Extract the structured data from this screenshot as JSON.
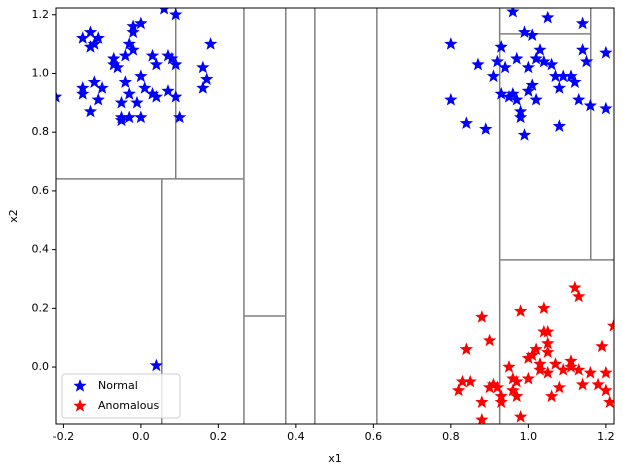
{
  "chart_data": {
    "type": "scatter",
    "x_label": "x1",
    "y_label": "x2",
    "xlim": [
      -0.219,
      1.221
    ],
    "ylim": [
      -0.194,
      1.223
    ],
    "xticks": [
      -0.2,
      {
        "value": 0,
        "label": "0.0"
      },
      0.2,
      0.4,
      0.6,
      0.8,
      {
        "value": 1,
        "label": "1.0"
      },
      1.2
    ],
    "yticks": [
      {
        "value": 0,
        "label": "0.0"
      },
      0.2,
      0.4,
      0.6,
      0.8,
      {
        "value": 1,
        "label": "1.0"
      },
      1.2
    ],
    "legend": "lower left",
    "partition_color": "#808080",
    "partitions": [
      {
        "x": [
          -0.219,
          0.266
        ],
        "y": [
          0.641,
          0.641
        ]
      },
      {
        "x": [
          0.09,
          0.09
        ],
        "y": [
          1.223,
          0.641
        ]
      },
      {
        "x": [
          0.054,
          0.054
        ],
        "y": [
          0.641,
          -0.194
        ]
      },
      {
        "x": [
          0.266,
          0.266
        ],
        "y": [
          1.223,
          -0.194
        ]
      },
      {
        "x": [
          0.374,
          0.374
        ],
        "y": [
          1.223,
          -0.194
        ]
      },
      {
        "x": [
          0.266,
          0.374
        ],
        "y": [
          0.174,
          0.174
        ]
      },
      {
        "x": [
          0.449,
          0.449
        ],
        "y": [
          1.223,
          -0.194
        ]
      },
      {
        "x": [
          0.609,
          0.609
        ],
        "y": [
          1.223,
          -0.194
        ]
      },
      {
        "x": [
          0.926,
          0.926
        ],
        "y": [
          1.223,
          -0.194
        ]
      },
      {
        "x": [
          0.926,
          1.221
        ],
        "y": [
          0.365,
          0.365
        ]
      },
      {
        "x": [
          1.161,
          1.161
        ],
        "y": [
          1.223,
          0.365
        ]
      },
      {
        "x": [
          0.926,
          1.161
        ],
        "y": [
          1.135,
          1.135
        ]
      }
    ],
    "series": [
      {
        "name": "Normal",
        "color": "#0000ff",
        "x": [
          -0.22,
          -0.15,
          -0.13,
          -0.12,
          -0.11,
          -0.13,
          -0.02,
          -0.02,
          0.0,
          0.06,
          0.09,
          0.18,
          -0.15,
          -0.15,
          -0.12,
          -0.1,
          -0.11,
          -0.13,
          -0.07,
          -0.07,
          -0.06,
          -0.04,
          -0.03,
          -0.02,
          -0.04,
          -0.03,
          0.0,
          0.01,
          0.03,
          0.04,
          0.07,
          0.08,
          0.07,
          0.09,
          0.03,
          0.04,
          -0.01,
          -0.05,
          -0.05,
          -0.05,
          -0.03,
          0.0,
          0.1,
          0.16,
          0.17,
          0.16,
          0.09,
          0.8,
          0.8,
          0.84,
          0.87,
          0.89,
          0.91,
          0.92,
          0.93,
          0.93,
          0.94,
          0.95,
          0.96,
          0.97,
          0.97,
          0.98,
          0.98,
          0.99,
          0.99,
          1.0,
          1.0,
          1.01,
          1.01,
          1.02,
          1.02,
          1.03,
          1.04,
          1.05,
          1.06,
          1.07,
          1.08,
          1.08,
          1.09,
          1.11,
          1.12,
          1.13,
          1.14,
          1.14,
          1.15,
          1.16,
          1.2,
          1.2,
          0.96,
          0.04
        ],
        "y": [
          0.92,
          1.12,
          1.14,
          1.1,
          1.12,
          1.09,
          1.16,
          1.14,
          1.17,
          1.22,
          1.2,
          1.1,
          0.95,
          0.93,
          0.97,
          0.95,
          0.91,
          0.87,
          1.03,
          1.05,
          1.02,
          1.06,
          1.1,
          1.08,
          0.97,
          0.93,
          0.99,
          0.95,
          1.06,
          1.03,
          1.06,
          1.05,
          0.94,
          0.92,
          0.93,
          0.92,
          0.9,
          0.9,
          0.85,
          0.84,
          0.85,
          0.85,
          0.85,
          1.02,
          0.98,
          0.95,
          1.03,
          1.1,
          0.91,
          0.83,
          1.03,
          0.81,
          0.99,
          1.04,
          0.93,
          1.09,
          1.02,
          0.92,
          1.21,
          0.91,
          1.05,
          0.87,
          0.85,
          0.79,
          1.14,
          1.02,
          0.94,
          0.96,
          1.13,
          0.91,
          1.05,
          1.08,
          1.04,
          1.19,
          1.03,
          0.99,
          0.95,
          0.82,
          0.99,
          0.99,
          0.97,
          0.91,
          1.08,
          1.17,
          1.04,
          0.89,
          1.07,
          0.88,
          0.93,
          0.005
        ]
      },
      {
        "name": "Anomalous",
        "color": "#ff0000",
        "x": [
          0.84,
          0.82,
          0.83,
          0.85,
          0.88,
          0.88,
          0.88,
          0.9,
          0.9,
          0.91,
          0.92,
          0.93,
          0.93,
          0.95,
          0.96,
          0.96,
          0.97,
          0.97,
          0.98,
          0.98,
          1.0,
          1.0,
          1.01,
          1.02,
          1.03,
          1.03,
          1.04,
          1.04,
          1.05,
          1.05,
          1.05,
          1.05,
          1.06,
          1.07,
          1.08,
          1.09,
          1.11,
          1.11,
          1.12,
          1.13,
          1.13,
          1.14,
          1.16,
          1.18,
          1.19,
          1.2,
          1.2,
          1.21,
          1.22
        ],
        "y": [
          0.06,
          -0.08,
          -0.05,
          -0.05,
          0.17,
          -0.12,
          -0.18,
          0.09,
          -0.07,
          -0.06,
          -0.07,
          -0.1,
          -0.12,
          0.0,
          -0.04,
          -0.08,
          -0.05,
          -0.1,
          -0.17,
          0.19,
          0.03,
          -0.04,
          0.04,
          0.06,
          0.01,
          -0.01,
          0.12,
          0.2,
          0.12,
          0.05,
          0.08,
          -0.02,
          -0.1,
          0.01,
          -0.07,
          -0.01,
          0.0,
          0.02,
          0.27,
          0.24,
          -0.01,
          -0.06,
          -0.02,
          -0.06,
          0.07,
          -0.02,
          -0.08,
          -0.12,
          0.14
        ]
      }
    ]
  }
}
